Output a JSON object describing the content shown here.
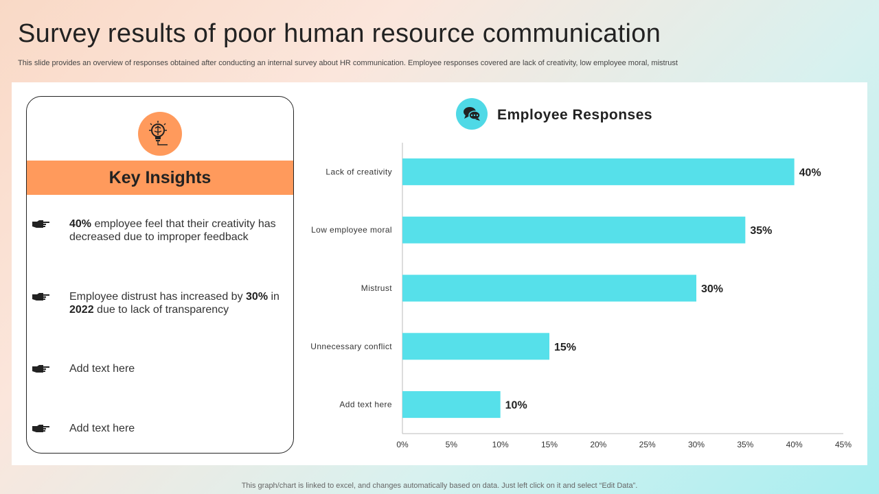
{
  "page": {
    "title": "Survey results of poor human resource communication",
    "subtitle": "This slide provides an overview of responses obtained after conducting an internal survey about HR communication. Employee responses covered are lack of creativity,  low employee moral, mistrust",
    "footer": "This graph/chart is linked to excel,  and changes automatically based on data. Just left click on it and select “Edit Data”."
  },
  "insights": {
    "heading": "Key Insights",
    "icon": "lightbulb-brain-icon",
    "items": [
      {
        "pre": "",
        "b1": "40%",
        "mid": " employee feel that their creativity has decreased due to improper feedback",
        "b2": "",
        "post": ""
      },
      {
        "pre": "Employee distrust has increased by ",
        "b1": "30%",
        "mid": " in ",
        "b2": "2022",
        "post": " due to lack of transparency"
      },
      {
        "pre": "Add text here",
        "b1": "",
        "mid": "",
        "b2": "",
        "post": ""
      },
      {
        "pre": "Add text here",
        "b1": "",
        "mid": "",
        "b2": "",
        "post": ""
      }
    ]
  },
  "chart_header": {
    "title": "Employee Responses",
    "icon": "chat-bubbles-icon"
  },
  "colors": {
    "bar": "#56e0ea",
    "accent_orange": "#ff9a5c",
    "accent_cyan": "#4fd9e6"
  },
  "chart_data": {
    "type": "bar",
    "orientation": "horizontal",
    "title": "Employee Responses",
    "categories": [
      "Lack of creativity",
      "Low employee moral",
      "Mistrust",
      "Unnecessary conflict",
      "Add text here"
    ],
    "values": [
      40,
      35,
      30,
      15,
      10
    ],
    "data_labels": [
      "40%",
      "35%",
      "30%",
      "15%",
      "10%"
    ],
    "xlim": [
      0,
      45
    ],
    "xticks": [
      0,
      5,
      10,
      15,
      20,
      25,
      30,
      35,
      40,
      45
    ],
    "xtick_labels": [
      "0%",
      "5%",
      "10%",
      "15%",
      "20%",
      "25%",
      "30%",
      "35%",
      "40%",
      "45%"
    ],
    "grid": false,
    "legend": "none"
  }
}
